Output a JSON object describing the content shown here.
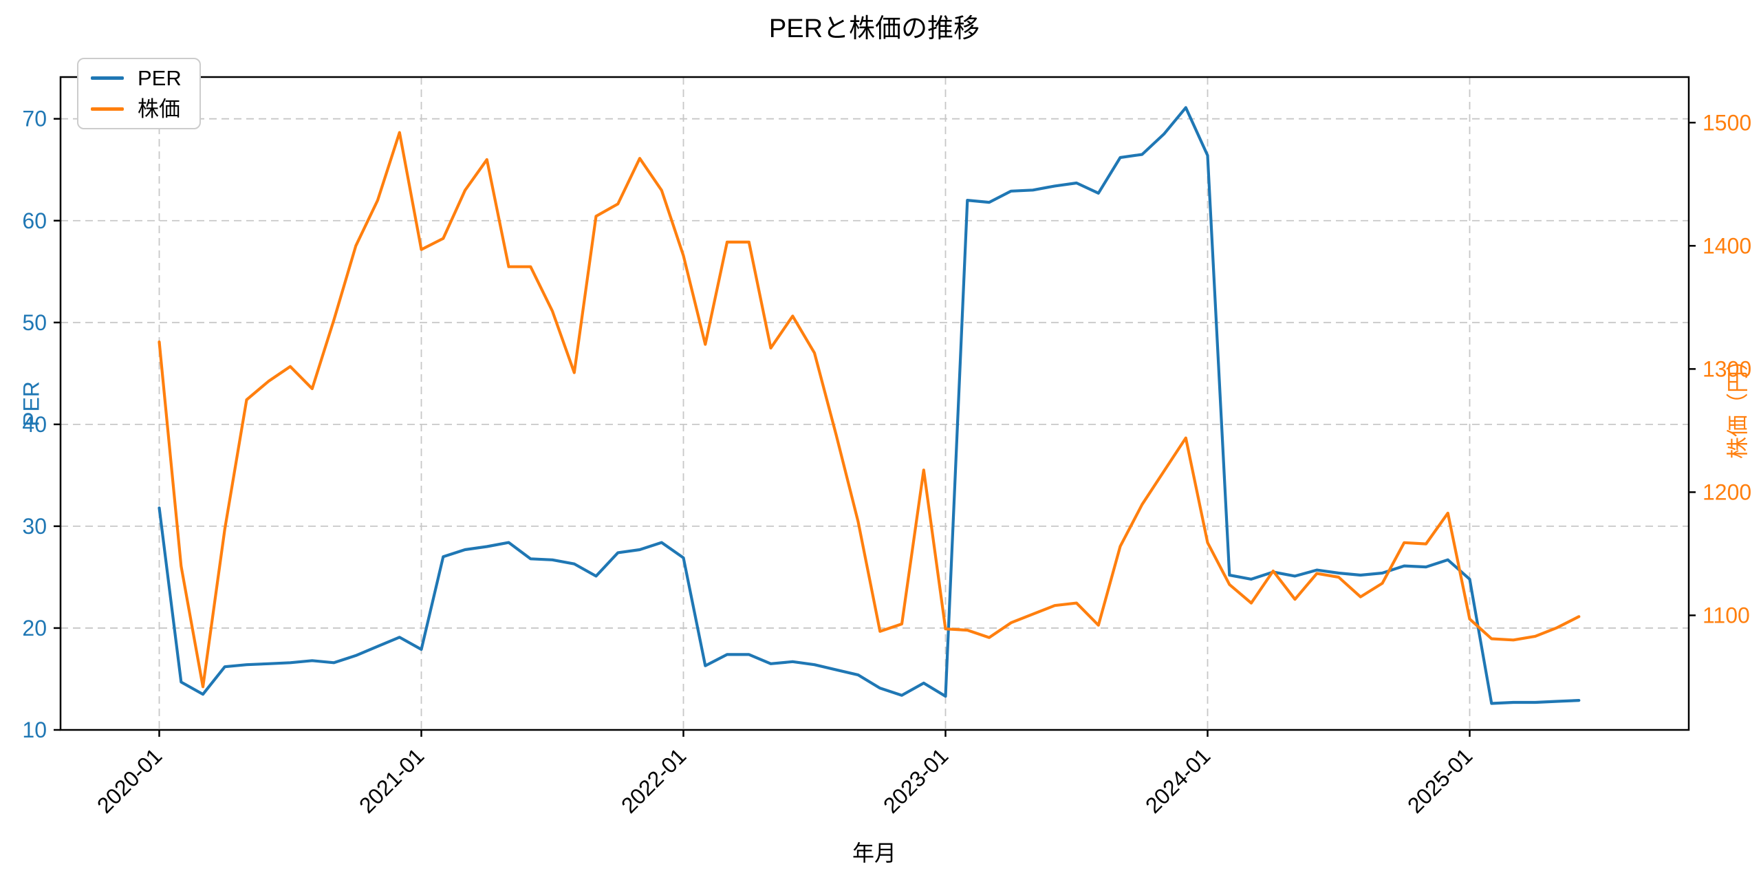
{
  "chart_data": {
    "type": "line",
    "title": "PERと株価の推移",
    "xlabel": "年月",
    "ylabel_left": "PER",
    "ylabel_right": "株価（円）",
    "legend_position": "upper-left",
    "grid": true,
    "x": [
      "2020-01",
      "2020-02",
      "2020-03",
      "2020-04",
      "2020-05",
      "2020-06",
      "2020-07",
      "2020-08",
      "2020-09",
      "2020-10",
      "2020-11",
      "2020-12",
      "2021-01",
      "2021-02",
      "2021-03",
      "2021-04",
      "2021-05",
      "2021-06",
      "2021-07",
      "2021-08",
      "2021-09",
      "2021-10",
      "2021-11",
      "2021-12",
      "2022-01",
      "2022-02",
      "2022-03",
      "2022-04",
      "2022-05",
      "2022-06",
      "2022-07",
      "2022-08",
      "2022-09",
      "2022-10",
      "2022-11",
      "2022-12",
      "2023-01",
      "2023-02",
      "2023-03",
      "2023-04",
      "2023-05",
      "2023-06",
      "2023-07",
      "2023-08",
      "2023-09",
      "2023-10",
      "2023-11",
      "2023-12",
      "2024-01",
      "2024-02",
      "2024-03",
      "2024-04",
      "2024-05",
      "2024-06",
      "2024-07",
      "2024-08",
      "2024-09",
      "2024-10",
      "2024-11",
      "2024-12",
      "2025-01",
      "2025-02",
      "2025-03",
      "2025-04",
      "2025-05",
      "2025-06"
    ],
    "xticks": [
      "2020-01",
      "2021-01",
      "2022-01",
      "2023-01",
      "2024-01",
      "2025-01"
    ],
    "series": [
      {
        "name": "PER",
        "axis": "left",
        "color": "#1f77b4",
        "values": [
          31.8,
          14.7,
          13.5,
          16.2,
          16.4,
          16.5,
          16.6,
          16.8,
          16.6,
          17.3,
          18.2,
          19.1,
          17.9,
          27.0,
          27.7,
          28.0,
          28.4,
          26.8,
          26.7,
          26.3,
          25.1,
          27.4,
          27.7,
          28.4,
          26.9,
          16.3,
          17.4,
          17.4,
          16.5,
          16.7,
          16.4,
          15.9,
          15.4,
          14.1,
          13.4,
          14.6,
          13.3,
          62.0,
          61.8,
          62.9,
          63.0,
          63.4,
          63.7,
          62.7,
          66.2,
          66.5,
          68.5,
          71.1,
          66.4,
          25.2,
          24.8,
          25.5,
          25.1,
          25.7,
          25.4,
          25.2,
          25.4,
          26.1,
          26.0,
          26.7,
          24.8,
          12.6,
          12.7,
          12.7,
          12.8,
          12.9
        ]
      },
      {
        "name": "株価",
        "axis": "right",
        "color": "#ff7f0e",
        "values": [
          1322,
          1140,
          1042,
          1170,
          1275,
          1290,
          1302,
          1284,
          1340,
          1400,
          1437,
          1492,
          1397,
          1406,
          1445,
          1470,
          1383,
          1383,
          1347,
          1297,
          1424,
          1434,
          1471,
          1445,
          1392,
          1320,
          1403,
          1403,
          1317,
          1343,
          1313,
          1246,
          1176,
          1087,
          1093,
          1218,
          1089,
          1088,
          1082,
          1094,
          1101,
          1108,
          1110,
          1092,
          1156,
          1190,
          1217,
          1244,
          1159,
          1125,
          1110,
          1136,
          1113,
          1134,
          1131,
          1115,
          1126,
          1159,
          1158,
          1183,
          1097,
          1081,
          1080,
          1083,
          1090,
          1099
        ]
      }
    ],
    "left_axis": {
      "ticks": [
        10,
        20,
        30,
        40,
        50,
        60,
        70
      ],
      "min": 10,
      "max": 74.1,
      "tick_color": "#1f77b4"
    },
    "right_axis": {
      "ticks": [
        1100,
        1200,
        1300,
        1400,
        1500
      ],
      "min": 1007,
      "max": 1537,
      "tick_color": "#ff7f0e"
    },
    "grid_color": "#c7c7c7",
    "spine_color": "#000000"
  }
}
